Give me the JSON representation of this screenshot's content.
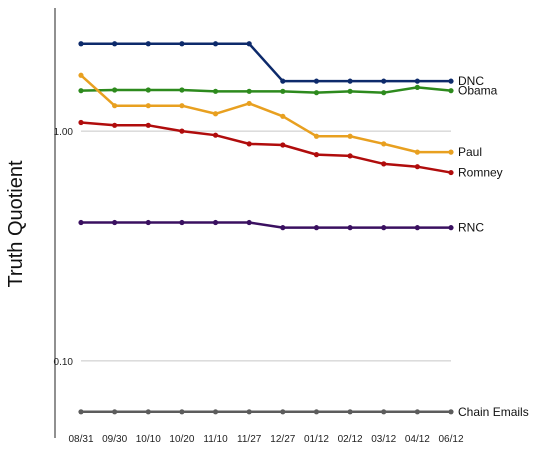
{
  "chart_data": {
    "type": "line",
    "title": "",
    "xlabel": "",
    "ylabel": "Truth Quotient",
    "yscale": "log",
    "ylim": [
      0.05,
      3.3
    ],
    "yticks": [
      {
        "value": 1.0,
        "label": "1.00"
      },
      {
        "value": 0.1,
        "label": "0.10"
      }
    ],
    "grid": "horizontal lines at y ticks",
    "legend": "series labels at right end of lines",
    "categories": [
      "08/31",
      "09/30",
      "10/10",
      "10/20",
      "11/10",
      "11/27",
      "12/27",
      "01/12",
      "02/12",
      "03/12",
      "04/12",
      "06/12"
    ],
    "series": [
      {
        "name": "DNC",
        "color": "#0d2a6b",
        "values": [
          2.4,
          2.4,
          2.4,
          2.4,
          2.4,
          2.4,
          1.65,
          1.65,
          1.65,
          1.65,
          1.65,
          1.65
        ]
      },
      {
        "name": "Obama",
        "color": "#2d8a1d",
        "values": [
          1.5,
          1.51,
          1.51,
          1.51,
          1.49,
          1.49,
          1.49,
          1.47,
          1.49,
          1.47,
          1.55,
          1.5
        ]
      },
      {
        "name": "Paul",
        "color": "#e8a020",
        "values": [
          1.75,
          1.29,
          1.29,
          1.29,
          1.19,
          1.32,
          1.16,
          0.95,
          0.95,
          0.88,
          0.81,
          0.81
        ]
      },
      {
        "name": "Romney",
        "color": "#b00c0c",
        "values": [
          1.09,
          1.06,
          1.06,
          1.0,
          0.96,
          0.88,
          0.87,
          0.79,
          0.78,
          0.72,
          0.7,
          0.66
        ]
      },
      {
        "name": "RNC",
        "color": "#3a1060",
        "values": [
          0.4,
          0.4,
          0.4,
          0.4,
          0.4,
          0.4,
          0.38,
          0.38,
          0.38,
          0.38,
          0.38,
          0.38
        ]
      },
      {
        "name": "Chain Emails",
        "color": "#5c5c5c",
        "values": [
          0.06,
          0.06,
          0.06,
          0.06,
          0.06,
          0.06,
          0.06,
          0.06,
          0.06,
          0.06,
          0.06,
          0.06
        ]
      }
    ]
  }
}
